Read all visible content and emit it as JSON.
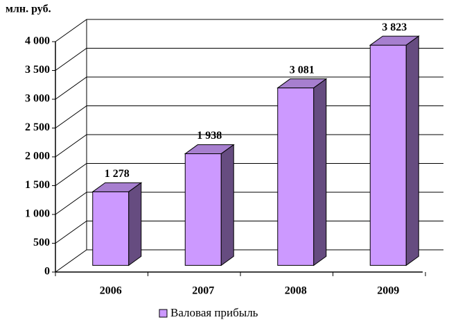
{
  "chart_data": {
    "type": "bar3d",
    "y_label": "млн. руб.",
    "categories": [
      "2006",
      "2007",
      "2008",
      "2009"
    ],
    "series": [
      {
        "name": "Валовая прибыль",
        "color": "#cc99ff",
        "side_color": "#664c80",
        "values": [
          1278,
          1938,
          3081,
          3823
        ],
        "value_labels": [
          "1 278",
          "1 938",
          "3 081",
          "3 823"
        ]
      }
    ],
    "ylim": [
      0,
      4000
    ],
    "yticks": [
      0,
      500,
      {
        "value": 1000,
        "label": "1 000"
      },
      {
        "value": 1500,
        "label": "1 500"
      },
      {
        "value": 2000,
        "label": "2 000"
      },
      {
        "value": 2500,
        "label": "2 500"
      },
      {
        "value": 3000,
        "label": "3 000"
      },
      {
        "value": 3500,
        "label": "3 500"
      },
      {
        "value": 4000,
        "label": "4 000"
      }
    ],
    "grid": true,
    "legend": "bottom"
  }
}
